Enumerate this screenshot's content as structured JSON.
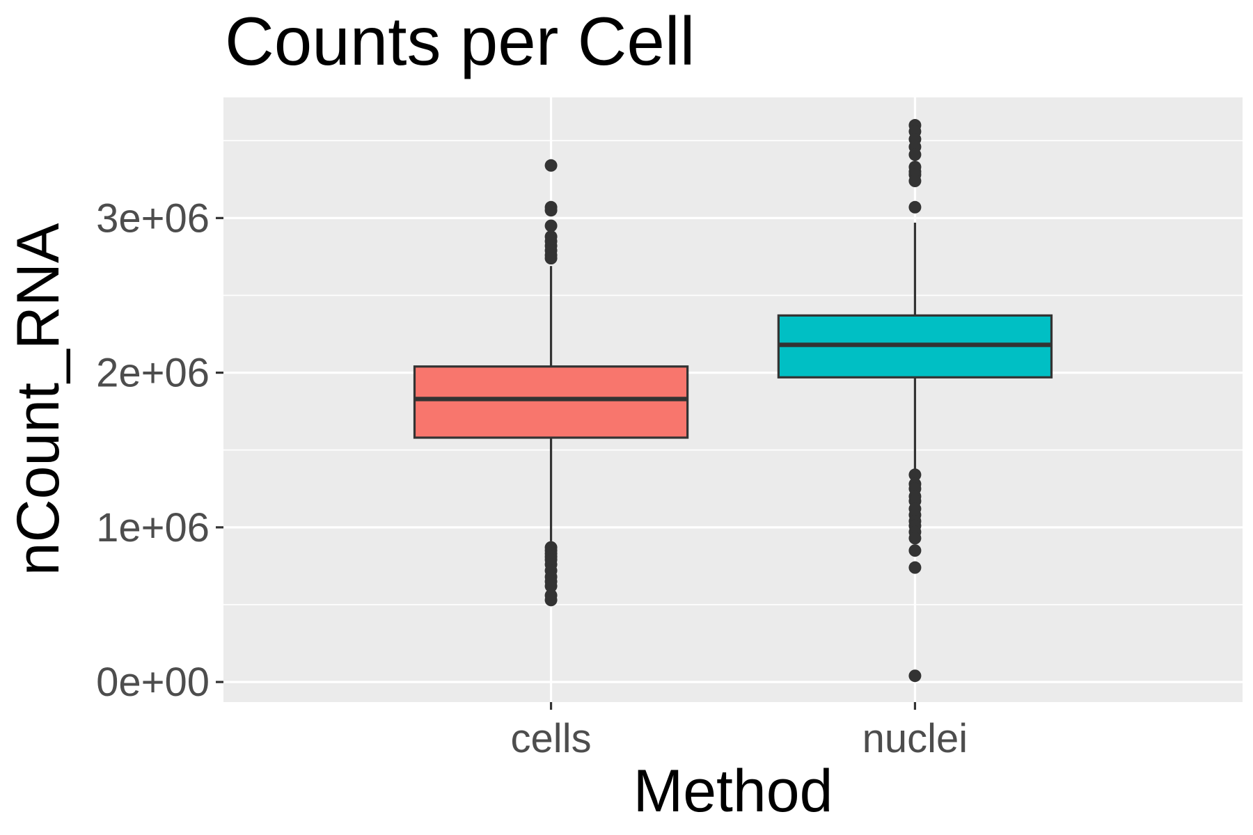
{
  "chart_data": {
    "type": "boxplot",
    "title": "Counts per Cell",
    "xlabel": "Method",
    "ylabel": "nCount_RNA",
    "categories": [
      "cells",
      "nuclei"
    ],
    "y_ticks": [
      0,
      1000000,
      2000000,
      3000000
    ],
    "y_tick_labels": [
      "0e+00",
      "1e+06",
      "2e+06",
      "3e+06"
    ],
    "ylim": [
      -130000,
      3780000
    ],
    "grid": true,
    "colors": {
      "panel": "#ebebeb",
      "grid": "#ffffff",
      "outline": "#333333",
      "cells_fill": "#f8766d",
      "nuclei_fill": "#00bfc4"
    },
    "boxes": [
      {
        "name": "cells",
        "fill": "#f8766d",
        "whisker_low": 910000,
        "q1": 1580000,
        "median": 1830000,
        "q3": 2040000,
        "whisker_high": 2690000,
        "outliers": [
          3340000,
          3070000,
          3050000,
          2950000,
          2880000,
          2850000,
          2820000,
          2790000,
          2760000,
          2740000,
          870000,
          850000,
          830000,
          810000,
          790000,
          760000,
          720000,
          680000,
          650000,
          620000,
          560000,
          530000
        ]
      },
      {
        "name": "nuclei",
        "fill": "#00bfc4",
        "whisker_low": 1370000,
        "q1": 1970000,
        "median": 2180000,
        "q3": 2370000,
        "whisker_high": 2970000,
        "outliers": [
          3600000,
          3560000,
          3510000,
          3460000,
          3410000,
          3330000,
          3300000,
          3280000,
          3240000,
          3070000,
          1340000,
          1280000,
          1250000,
          1200000,
          1170000,
          1120000,
          1080000,
          1040000,
          1010000,
          970000,
          930000,
          850000,
          740000,
          40000
        ]
      }
    ]
  }
}
